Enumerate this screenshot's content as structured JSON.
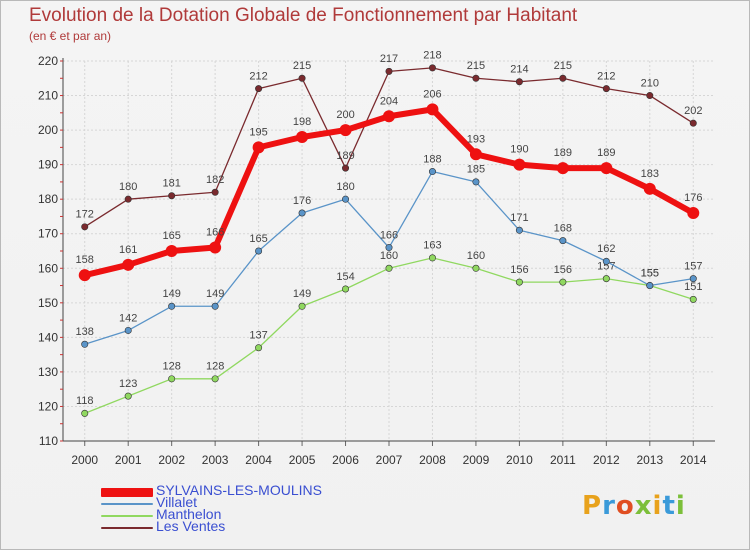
{
  "title": "Evolution de la Dotation Globale de Fonctionnement par Habitant",
  "subtitle": "(en € et par an)",
  "logo": {
    "text": "Proxiti",
    "colors": [
      "#e8a21c",
      "#3a9ad9",
      "#e04e22",
      "#7cbf3a",
      "#e8a21c",
      "#3a9ad9",
      "#7cbf3a"
    ]
  },
  "chart_data": {
    "type": "line",
    "title": "Evolution de la Dotation Globale de Fonctionnement par Habitant",
    "subtitle": "(en € et par an)",
    "xlabel": "",
    "ylabel": "",
    "x": [
      "2000",
      "2001",
      "2002",
      "2003",
      "2004",
      "2005",
      "2006",
      "2007",
      "2008",
      "2009",
      "2010",
      "2011",
      "2012",
      "2013",
      "2014"
    ],
    "ylim": [
      110,
      220
    ],
    "yticks": [
      110,
      120,
      130,
      140,
      150,
      160,
      170,
      180,
      190,
      200,
      210,
      220
    ],
    "grid": true,
    "legend_position": "bottom-left",
    "series": [
      {
        "name": "Les Ventes",
        "color": "#7a2a2e",
        "values": [
          172,
          180,
          181,
          182,
          212,
          215,
          189,
          217,
          218,
          215,
          214,
          215,
          212,
          210,
          202
        ]
      },
      {
        "name": "Manthelon",
        "color": "#90d860",
        "values": [
          118,
          123,
          128,
          128,
          137,
          149,
          154,
          160,
          163,
          160,
          156,
          156,
          157,
          155,
          151
        ]
      },
      {
        "name": "Villalet",
        "color": "#5a94c8",
        "values": [
          138,
          142,
          149,
          149,
          165,
          176,
          180,
          166,
          188,
          185,
          171,
          168,
          162,
          155,
          157
        ]
      },
      {
        "name": "SYLVAINS-LES-MOULINS",
        "color": "#ee1111",
        "values": [
          158,
          161,
          165,
          166,
          195,
          198,
          200,
          204,
          206,
          193,
          190,
          189,
          189,
          183,
          176
        ]
      }
    ],
    "legend_order": [
      "SYLVAINS-LES-MOULINS",
      "Villalet",
      "Manthelon",
      "Les Ventes"
    ]
  }
}
